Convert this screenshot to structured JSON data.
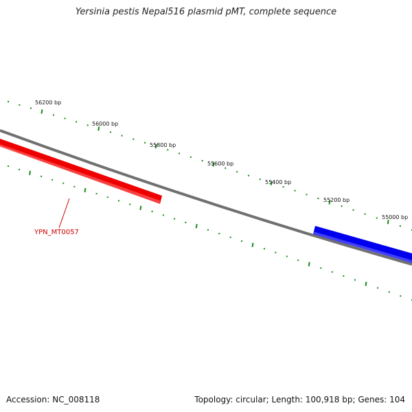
{
  "title": "Yersinia pestis Nepal516 plasmid pMT, complete sequence",
  "footer": {
    "accession": "Accession: NC_008118",
    "summary": "Topology: circular; Length: 100,918 bp; Genes: 104"
  },
  "colors": {
    "backbone": "#707070",
    "gene_reverse": "#ee0000",
    "gene_forward": "#0000ee",
    "ticks": "#138a13",
    "gene_label": "#cc0000"
  },
  "ruler": {
    "labels": [
      "56200 bp",
      "56000 bp",
      "55800 bp",
      "55600 bp",
      "55400 bp",
      "55200 bp",
      "55000 bp"
    ]
  },
  "genes": [
    {
      "label": "YPN_MT0057",
      "strand": "reverse"
    },
    {
      "label": "",
      "strand": "forward"
    }
  ]
}
